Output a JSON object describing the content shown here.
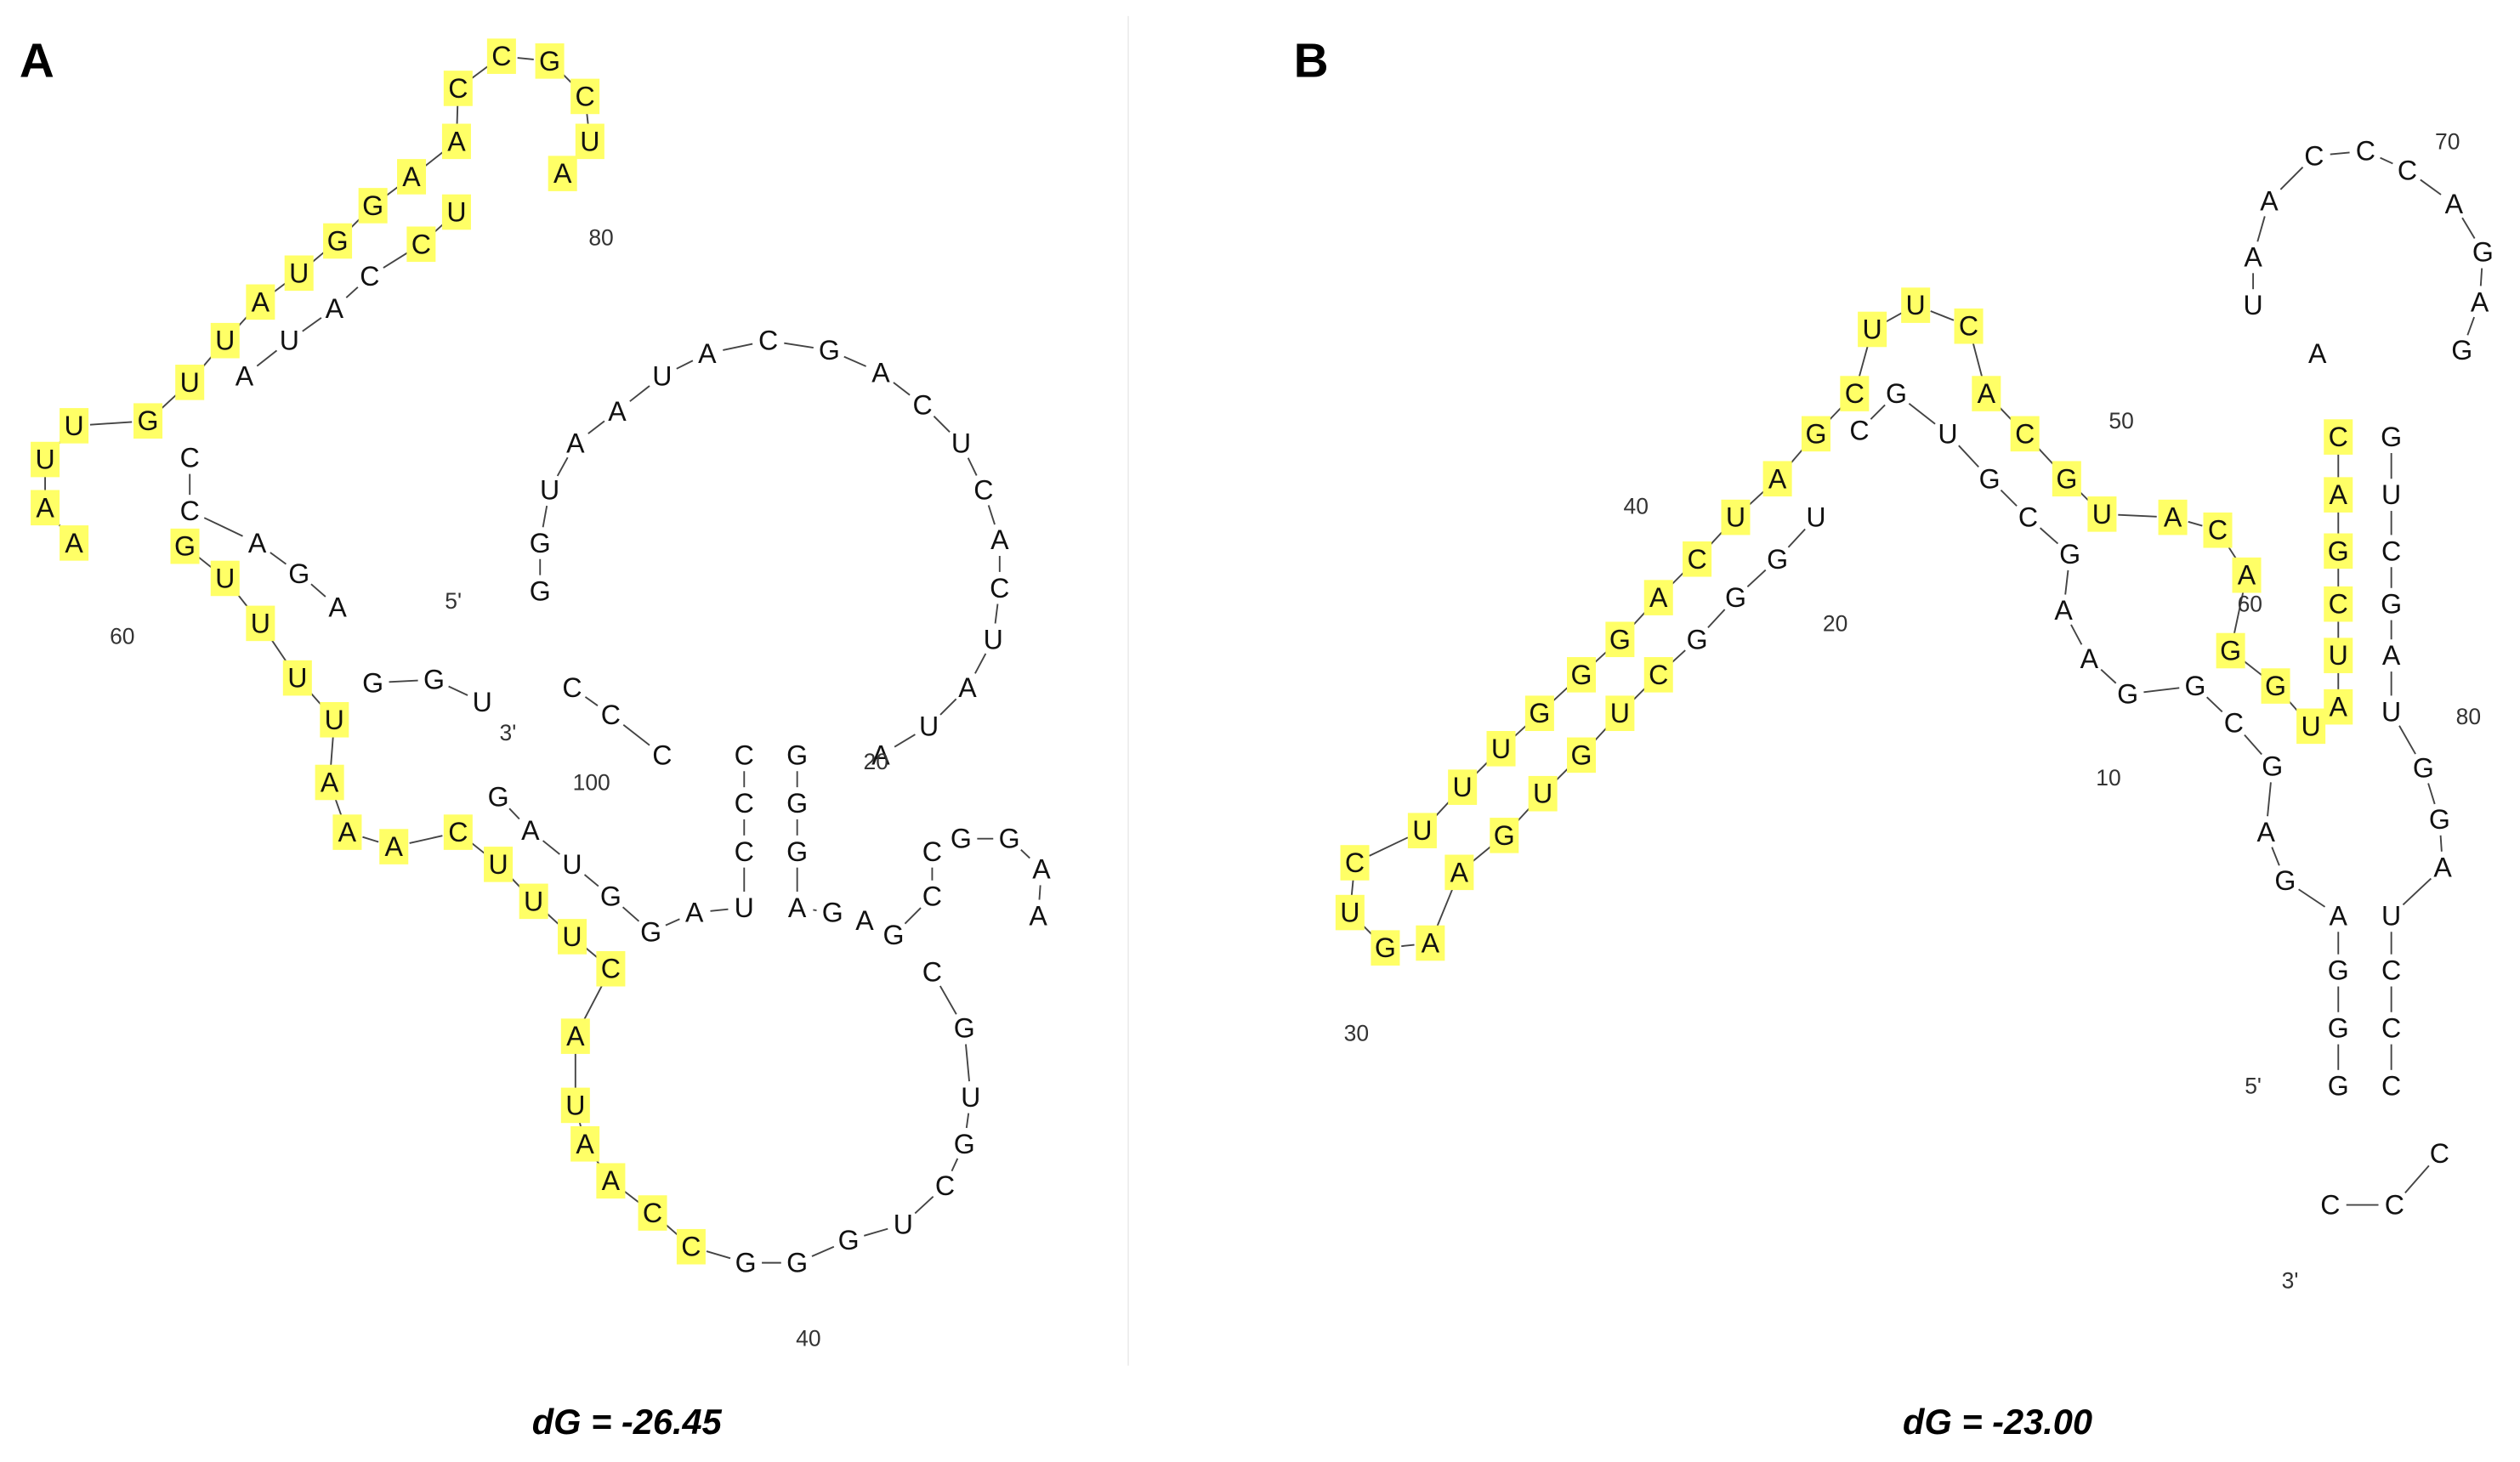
{
  "panels": [
    {
      "label": "A",
      "energy": "dG = -26.45",
      "nucleotides": [
        "G",
        "G",
        "U",
        "A",
        "A",
        "U",
        "A",
        "C",
        "G",
        "A",
        "C",
        "U",
        "C",
        "A",
        "C",
        "U",
        "A",
        "U",
        "A",
        "G",
        "G",
        "G",
        "A",
        "G",
        "A",
        "G",
        "C",
        "C",
        "G",
        "G",
        "A",
        "A",
        "C",
        "G",
        "U",
        "G",
        "C",
        "U",
        "G",
        "G",
        "G",
        "C",
        "C",
        "A",
        "A",
        "U",
        "A",
        "C",
        "U",
        "U",
        "U",
        "C",
        "A",
        "A",
        "A",
        "U",
        "U",
        "U",
        "U",
        "G",
        "A",
        "A",
        "U",
        "U",
        "G",
        "U",
        "U",
        "A",
        "U",
        "G",
        "G",
        "A",
        "A",
        "C",
        "C",
        "G",
        "C",
        "U",
        "A",
        "U",
        "C",
        "C",
        "A",
        "U",
        "A",
        "C",
        "C",
        "A",
        "G",
        "A",
        "G",
        "G",
        "U",
        "G",
        "A",
        "U",
        "G",
        "G",
        "A",
        "U",
        "C",
        "C",
        "C",
        "C",
        "C",
        "C"
      ],
      "annotations": [
        "5'",
        "3'",
        "100",
        "20",
        "40",
        "60",
        "80"
      ]
    },
    {
      "label": "B",
      "energy": "dG = -23.00",
      "nucleotides": [
        "G",
        "G",
        "G",
        "A",
        "G",
        "A",
        "G",
        "C",
        "G",
        "G",
        "A",
        "A",
        "G",
        "C",
        "G",
        "U",
        "G",
        "C",
        "U",
        "G",
        "G",
        "G",
        "C",
        "U",
        "G",
        "U",
        "G",
        "A",
        "A",
        "G",
        "U",
        "C",
        "U",
        "U",
        "U",
        "G",
        "G",
        "G",
        "A",
        "C",
        "U",
        "A",
        "G",
        "C",
        "U",
        "U",
        "C",
        "A",
        "C",
        "G",
        "U",
        "A",
        "C",
        "A",
        "G",
        "G",
        "U",
        "A",
        "U",
        "C",
        "G",
        "A",
        "C",
        "A",
        "U",
        "A",
        "A",
        "C",
        "C",
        "C",
        "A",
        "G",
        "A",
        "G",
        "G",
        "U",
        "C",
        "G",
        "A",
        "U",
        "G",
        "G",
        "A",
        "U",
        "C",
        "C",
        "C",
        "C",
        "C",
        "C"
      ],
      "annotations": [
        "5'",
        "3'",
        "10",
        "20",
        "30",
        "40",
        "50",
        "60",
        "70",
        "80"
      ]
    }
  ]
}
